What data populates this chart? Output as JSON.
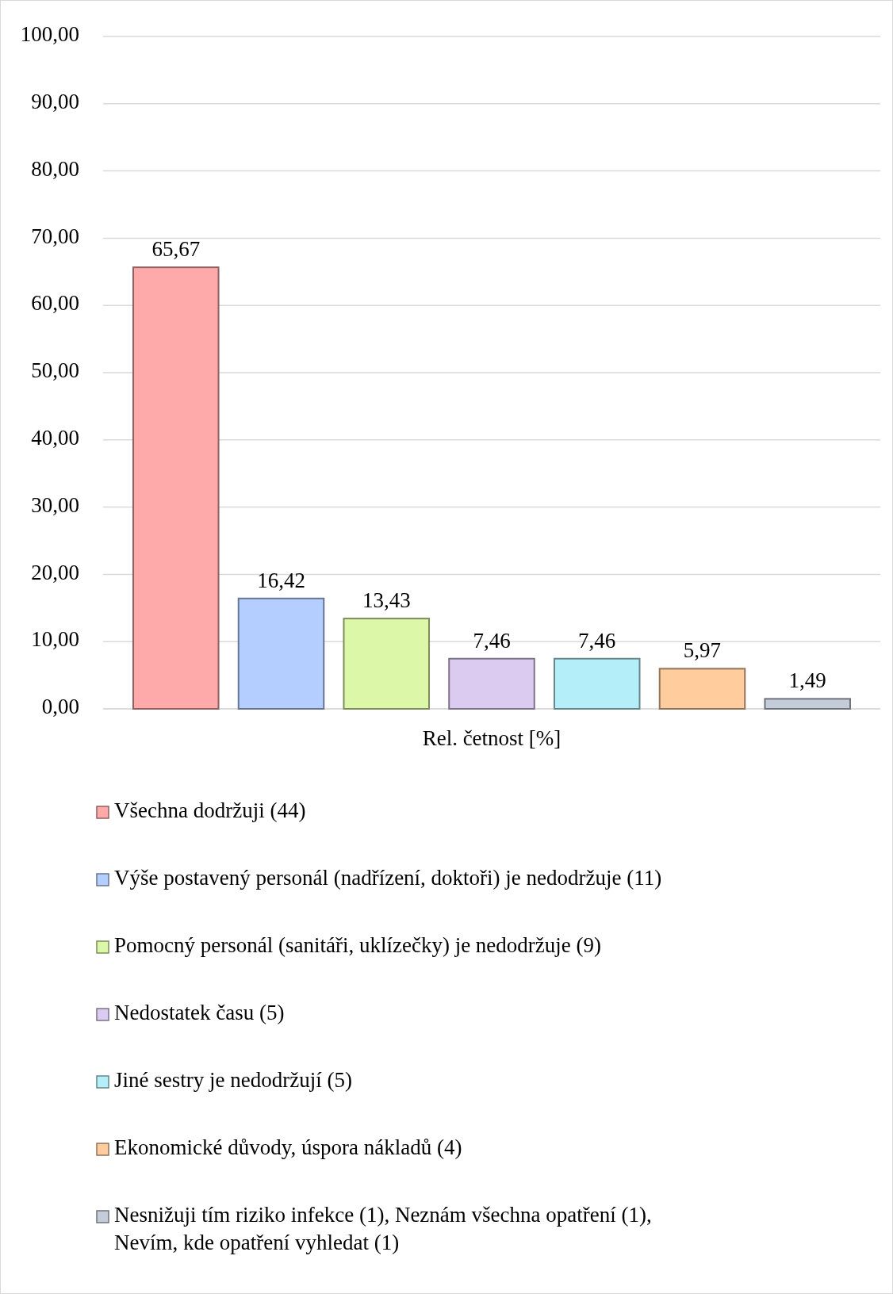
{
  "chart_data": {
    "type": "bar",
    "categories": [
      "Rel. četnost [%]"
    ],
    "series": [
      {
        "name": "Všechna dodržuji (44)",
        "color": "#ffaaaa",
        "values": [
          65.67
        ],
        "value_labels": [
          "65,67"
        ]
      },
      {
        "name": "Výše postavený personál (nadřízení, doktoři) je nedodržuje (11)",
        "color": "#b4cfff",
        "values": [
          16.42
        ],
        "value_labels": [
          "16,42"
        ]
      },
      {
        "name": "Pomocný personál (sanitáři, uklízečky) je nedodržuje (9)",
        "color": "#dcf7a8",
        "values": [
          13.43
        ],
        "value_labels": [
          "13,43"
        ]
      },
      {
        "name": "Nedostatek času (5)",
        "color": "#dccbf0",
        "values": [
          7.46
        ],
        "value_labels": [
          "7,46"
        ]
      },
      {
        "name": "Jiné sestry je nedodržují (5)",
        "color": "#b4eef8",
        "values": [
          7.46
        ],
        "value_labels": [
          "7,46"
        ]
      },
      {
        "name": "Ekonomické důvody, úspora nákladů (4)",
        "color": "#ffcc9e",
        "values": [
          5.97
        ],
        "value_labels": [
          "5,97"
        ]
      },
      {
        "name": "Nesnižuji tím riziko infekce (1), Neznám všechna opatření (1), Nevím, kde opatření vyhledat (1)",
        "color": "#c4ccda",
        "values": [
          1.49
        ],
        "value_labels": [
          "1,49"
        ]
      }
    ],
    "ylim": [
      0,
      100
    ],
    "yticks": [
      {
        "value": 0,
        "label": "0,00"
      },
      {
        "value": 10,
        "label": "10,00"
      },
      {
        "value": 20,
        "label": "20,00"
      },
      {
        "value": 30,
        "label": "30,00"
      },
      {
        "value": 40,
        "label": "40,00"
      },
      {
        "value": 50,
        "label": "50,00"
      },
      {
        "value": 60,
        "label": "60,00"
      },
      {
        "value": 70,
        "label": "70,00"
      },
      {
        "value": 80,
        "label": "80,00"
      },
      {
        "value": 90,
        "label": "90,00"
      },
      {
        "value": 100,
        "label": "100,00"
      }
    ],
    "grid": "y",
    "legend": "bottom"
  }
}
